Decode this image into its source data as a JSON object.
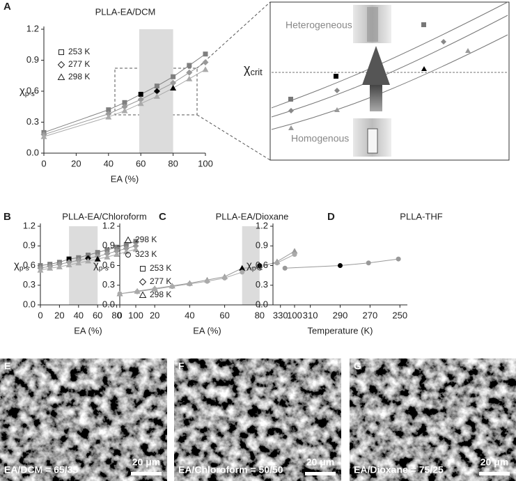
{
  "chart_data": [
    {
      "type": "line",
      "panel": "A",
      "title": "PLLA-EA/DCM",
      "x_label": "EA (%)",
      "y_label": "χ",
      "y_label_sub": "p-s",
      "x": [
        0,
        40,
        50,
        60,
        70,
        80,
        90,
        100
      ],
      "series": [
        {
          "name": "253 K",
          "marker": "square",
          "color": "#7f7f7f",
          "point_colors": [
            "#7f7f7f",
            "#7f7f7f",
            "#7f7f7f",
            "#000000",
            "#7f7f7f",
            "#7f7f7f",
            "#7f7f7f",
            "#7f7f7f"
          ],
          "values": [
            0.2,
            0.42,
            0.49,
            0.57,
            0.65,
            0.74,
            0.85,
            0.96
          ]
        },
        {
          "name": "277 K",
          "marker": "diamond",
          "color": "#999999",
          "point_colors": [
            "#999999",
            "#999999",
            "#999999",
            "#999999",
            "#000000",
            "#999999",
            "#999999",
            "#999999"
          ],
          "values": [
            0.18,
            0.38,
            0.45,
            0.52,
            0.6,
            0.68,
            0.78,
            0.88
          ]
        },
        {
          "name": "298 K",
          "marker": "triangle",
          "color": "#aaaaaa",
          "point_colors": [
            "#aaaaaa",
            "#aaaaaa",
            "#aaaaaa",
            "#aaaaaa",
            "#aaaaaa",
            "#000000",
            "#aaaaaa",
            "#aaaaaa"
          ],
          "values": [
            0.16,
            0.35,
            0.41,
            0.48,
            0.55,
            0.63,
            0.72,
            0.81
          ]
        }
      ],
      "shade": [
        59,
        80
      ],
      "xlim": [
        0,
        100
      ],
      "ylim": [
        0,
        1.2
      ],
      "xticks": [
        0,
        20,
        40,
        60,
        80,
        100
      ],
      "yticks": [
        {
          "value": 0,
          "label": "0.0"
        },
        0.3,
        0.6,
        0.9,
        1.2
      ],
      "legend": "upper left"
    },
    {
      "type": "line",
      "panel": "B",
      "title": "PLLA-EA/Chloroform",
      "x_label": "EA (%)",
      "y_label": "χ",
      "y_label_sub": "p-s",
      "x": [
        0,
        10,
        20,
        30,
        40,
        50,
        60,
        70,
        80,
        90,
        100
      ],
      "series": [
        {
          "name": "253 K",
          "marker": "square",
          "color": "#7f7f7f",
          "point_colors": [
            "#7f7f7f",
            "#7f7f7f",
            "#7f7f7f",
            "#000000",
            "#7f7f7f",
            "#7f7f7f",
            "#7f7f7f",
            "#7f7f7f",
            "#7f7f7f",
            "#7f7f7f",
            "#7f7f7f"
          ],
          "values": [
            0.6,
            0.62,
            0.65,
            0.7,
            0.72,
            0.76,
            0.8,
            0.84,
            0.88,
            0.92,
            0.97
          ]
        },
        {
          "name": "277 K",
          "marker": "diamond",
          "color": "#999999",
          "point_colors": [
            "#999999",
            "#999999",
            "#999999",
            "#999999",
            "#999999",
            "#000000",
            "#999999",
            "#999999",
            "#999999",
            "#999999",
            "#999999"
          ],
          "values": [
            0.56,
            0.59,
            0.62,
            0.65,
            0.68,
            0.71,
            0.74,
            0.78,
            0.82,
            0.86,
            0.9
          ]
        },
        {
          "name": "298 K",
          "marker": "triangle",
          "color": "#aaaaaa",
          "point_colors": [
            "#aaaaaa",
            "#aaaaaa",
            "#aaaaaa",
            "#aaaaaa",
            "#aaaaaa",
            "#aaaaaa",
            "#000000",
            "#aaaaaa",
            "#aaaaaa",
            "#aaaaaa",
            "#aaaaaa"
          ],
          "values": [
            0.53,
            0.56,
            0.58,
            0.61,
            0.64,
            0.67,
            0.7,
            0.73,
            0.77,
            0.81,
            0.85
          ]
        }
      ],
      "shade": [
        30,
        60
      ],
      "xlim": [
        0,
        100
      ],
      "ylim": [
        0,
        1.2
      ],
      "xticks": [
        0,
        20,
        40,
        60,
        80,
        100
      ],
      "yticks": [
        {
          "value": 0,
          "label": "0.0"
        },
        0.3,
        0.6,
        0.9,
        1.2
      ],
      "legend": "lower right"
    },
    {
      "type": "line",
      "panel": "C",
      "title": "PLLA-EA/Dioxane",
      "x_label": "EA (%)",
      "y_label": "χ",
      "y_label_sub": "p-s",
      "x": [
        0,
        10,
        20,
        30,
        40,
        50,
        60,
        70,
        80,
        90,
        100
      ],
      "series": [
        {
          "name": "298 K",
          "marker": "triangle",
          "color": "#999999",
          "point_colors": [
            "#999999",
            "#999999",
            "#999999",
            "#999999",
            "#999999",
            "#999999",
            "#999999",
            "#000000",
            "#999999",
            "#999999",
            "#999999"
          ],
          "values": [
            0.17,
            0.21,
            0.25,
            0.29,
            0.33,
            0.38,
            0.43,
            0.56,
            0.57,
            0.66,
            0.82
          ]
        },
        {
          "name": "323 K",
          "marker": "circle",
          "color": "#aaaaaa",
          "point_colors": [
            "#aaaaaa",
            "#aaaaaa",
            "#aaaaaa",
            "#aaaaaa",
            "#aaaaaa",
            "#aaaaaa",
            "#aaaaaa",
            "#aaaaaa",
            "#000000",
            "#aaaaaa",
            "#aaaaaa"
          ],
          "values": [
            0.17,
            0.2,
            0.24,
            0.28,
            0.32,
            0.36,
            0.41,
            0.5,
            0.6,
            0.64,
            0.77
          ]
        }
      ],
      "shade": [
        70,
        80
      ],
      "xlim": [
        0,
        100
      ],
      "ylim": [
        0,
        1.2
      ],
      "xticks": [
        0,
        20,
        40,
        60,
        80,
        100
      ],
      "yticks": [
        {
          "value": 0,
          "label": "0.0"
        },
        0.3,
        0.6,
        0.9,
        1.2
      ],
      "legend": "upper left"
    },
    {
      "type": "line",
      "panel": "D",
      "title": "PLLA-THF",
      "x_label": "Temperature (K)",
      "y_label": "χ",
      "y_label_sub": "p-s",
      "x": [
        327,
        290,
        271,
        251
      ],
      "series": [
        {
          "marker": "circle",
          "color": "#999999",
          "point_colors": [
            "#999999",
            "#000000",
            "#999999",
            "#999999"
          ],
          "values": [
            0.56,
            0.6,
            0.64,
            0.7
          ]
        }
      ],
      "xlim": [
        335,
        245
      ],
      "ylim": [
        0,
        1.2
      ],
      "xticks": [
        330,
        310,
        290,
        270,
        250
      ],
      "yticks": [
        {
          "value": 0,
          "label": "0.0"
        },
        0.3,
        0.6,
        0.9,
        1.2
      ]
    }
  ],
  "inset": {
    "top": "Heterogeneous",
    "bottom": "Homogenous",
    "critical": "χ",
    "critical_sub": "crit"
  },
  "micrographs": [
    {
      "panel": "E",
      "caption": "EA/DCM = 65/35",
      "scale": "20 μm"
    },
    {
      "panel": "F",
      "caption": "EA/Chloroform = 50/50",
      "scale": "20 μm"
    },
    {
      "panel": "G",
      "caption": "EA/Dioxane = 75/25",
      "scale": "20 μm"
    }
  ]
}
